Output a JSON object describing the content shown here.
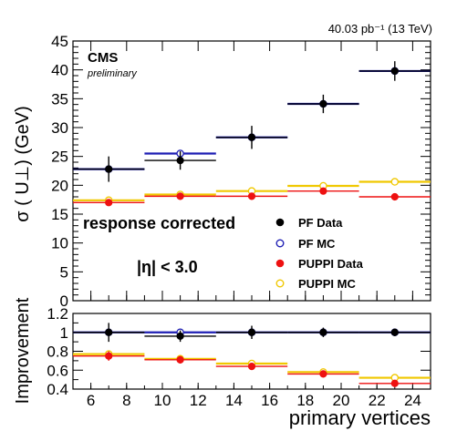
{
  "header": {
    "lumi_label": "40.03 pb⁻¹ (13 TeV)"
  },
  "experiment": {
    "name": "CMS",
    "status": "preliminary"
  },
  "chart_data": [
    {
      "type": "scatter",
      "panel": "upper",
      "ylabel": "σ ( U⊥) (GeV)",
      "ylim": [
        0,
        45
      ],
      "yticks": [
        0,
        5,
        10,
        15,
        20,
        25,
        30,
        35,
        40,
        45
      ],
      "xlim": [
        5,
        25
      ],
      "x_bins": [
        [
          5,
          9
        ],
        [
          9,
          13
        ],
        [
          13,
          17
        ],
        [
          17,
          21
        ],
        [
          21,
          25
        ]
      ],
      "x": [
        7,
        11,
        15,
        19,
        23
      ],
      "annotations": [
        "response corrected",
        "|η| < 3.0"
      ],
      "legend_position": "bottom-right",
      "series": [
        {
          "name": "PF Data",
          "marker": "filled-circle",
          "color": "#000000",
          "values": [
            22.8,
            24.3,
            28.3,
            34.1,
            39.8
          ],
          "errors": [
            2.2,
            1.6,
            2.0,
            1.6,
            1.7
          ]
        },
        {
          "name": "PF MC",
          "marker": "open-circle",
          "color": "#1e1eb4",
          "values": [
            22.8,
            25.5,
            28.3,
            34.1,
            39.8
          ]
        },
        {
          "name": "PUPPI Data",
          "marker": "filled-circle",
          "color": "#ee1111",
          "values": [
            17.0,
            18.1,
            18.1,
            19.0,
            18.0
          ],
          "errors": [
            0.5,
            0.5,
            0.4,
            0.4,
            0.4
          ]
        },
        {
          "name": "PUPPI MC",
          "marker": "open-circle",
          "color": "#f0c800",
          "values": [
            17.4,
            18.4,
            19.0,
            19.9,
            20.6
          ]
        }
      ]
    },
    {
      "type": "scatter",
      "panel": "lower",
      "ylabel": "Improvement",
      "xlabel": "primary vertices",
      "ylim": [
        0.4,
        1.2
      ],
      "yticks": [
        0.4,
        0.6,
        0.8,
        1,
        1.2
      ],
      "xlim": [
        5,
        25
      ],
      "xticks": [
        6,
        8,
        10,
        12,
        14,
        16,
        18,
        20,
        22,
        24
      ],
      "x": [
        7,
        11,
        15,
        19,
        23
      ],
      "series": [
        {
          "name": "PF Data",
          "color": "#000000",
          "values": [
            1.0,
            0.96,
            1.0,
            1.0,
            1.0
          ],
          "errors": [
            0.1,
            0.06,
            0.07,
            0.05,
            0.04
          ]
        },
        {
          "name": "PF MC",
          "color": "#1e1eb4",
          "values": [
            1.0,
            1.0,
            1.0,
            1.0,
            1.0
          ]
        },
        {
          "name": "PUPPI Data",
          "color": "#ee1111",
          "values": [
            0.75,
            0.71,
            0.64,
            0.56,
            0.46
          ],
          "errors": [
            0.05,
            0.04,
            0.03,
            0.02,
            0.02
          ]
        },
        {
          "name": "PUPPI MC",
          "color": "#f0c800",
          "values": [
            0.77,
            0.72,
            0.67,
            0.58,
            0.52
          ]
        }
      ]
    }
  ]
}
